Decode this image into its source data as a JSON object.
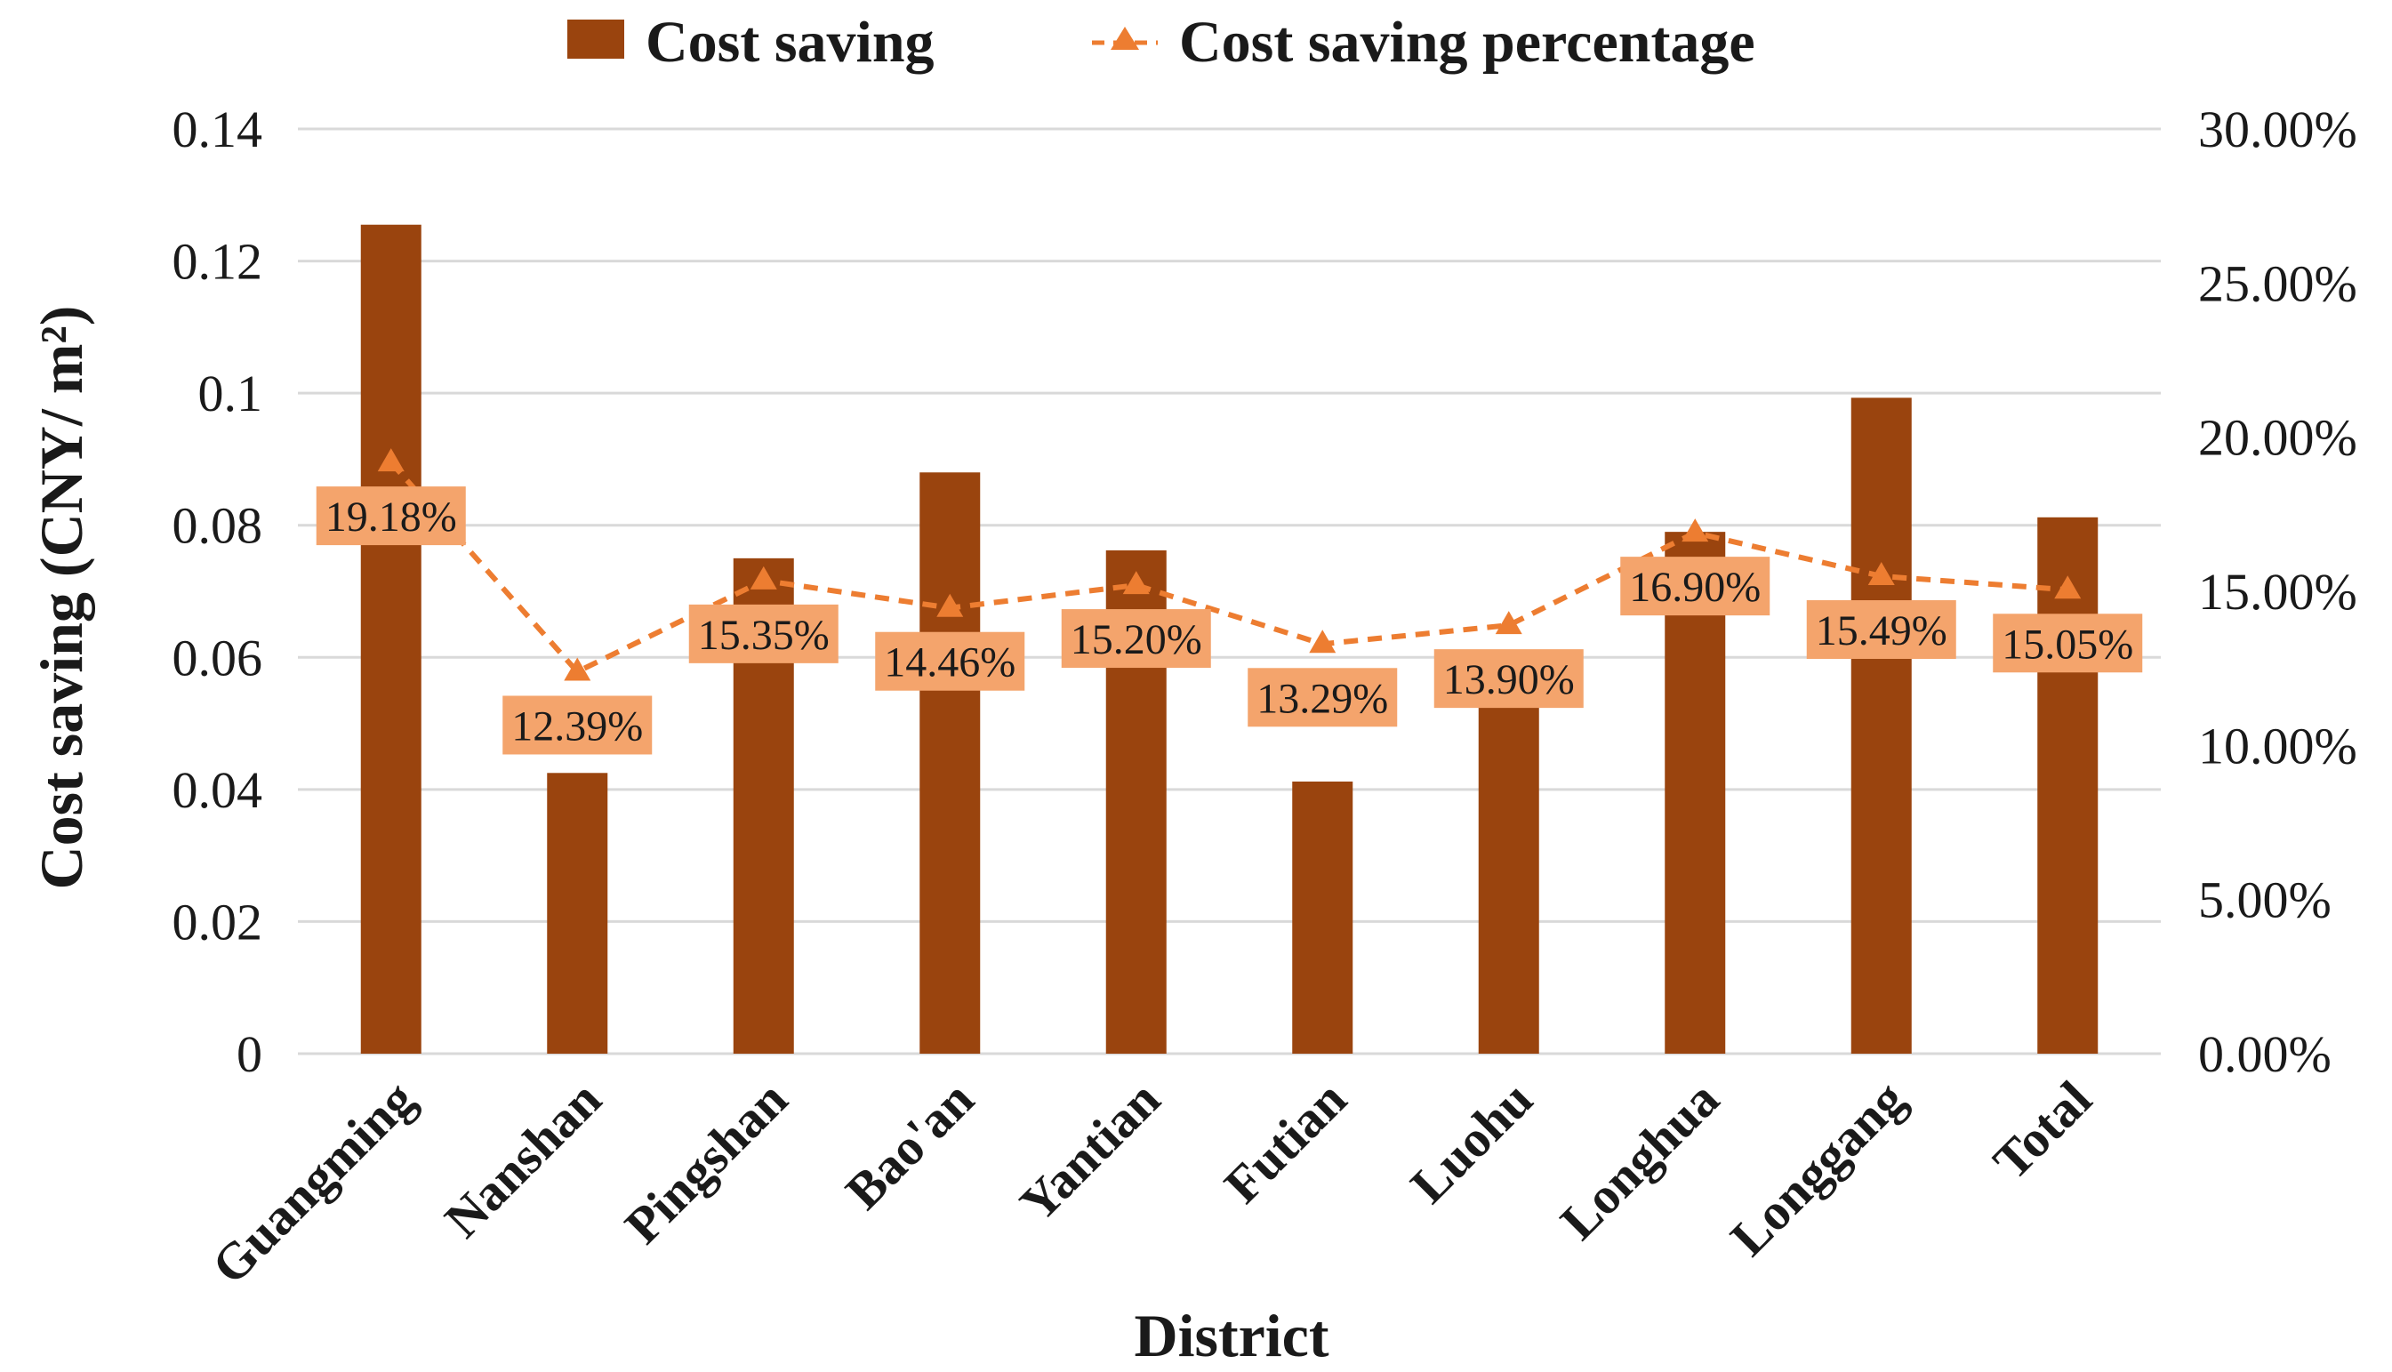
{
  "chart_data": {
    "type": "bar",
    "categories": [
      "Guangming",
      "Nanshan",
      "Pingshan",
      "Bao'an",
      "Yantian",
      "Futian",
      "Luohu",
      "Longhua",
      "Longgang",
      "Total"
    ],
    "series": [
      {
        "name": "Cost saving",
        "type": "bar",
        "axis": "left",
        "color": "#9a440e",
        "values": [
          0.1255,
          0.0425,
          0.075,
          0.088,
          0.0762,
          0.0412,
          0.0528,
          0.079,
          0.0993,
          0.0812
        ]
      },
      {
        "name": "Cost saving percentage",
        "type": "line",
        "axis": "right",
        "color": "#ed7d31",
        "marker": "triangle",
        "line_style": "dashed",
        "values": [
          19.18,
          12.39,
          15.35,
          14.46,
          15.2,
          13.29,
          13.9,
          16.9,
          15.49,
          15.05
        ],
        "labels": [
          "19.18%",
          "12.39%",
          "15.35%",
          "14.46%",
          "15.20%",
          "13.29%",
          "13.90%",
          "16.90%",
          "15.49%",
          "15.05%"
        ],
        "label_bg": "#f4a46c"
      }
    ],
    "y_left": {
      "label": "Cost saving (CNY/ m²)",
      "ylim": [
        0,
        0.14
      ],
      "ticks": [
        0,
        0.02,
        0.04,
        0.06,
        0.08,
        0.1,
        0.12,
        0.14
      ],
      "tick_labels": [
        "0",
        "0.02",
        "0.04",
        "0.06",
        "0.08",
        "0.1",
        "0.12",
        "0.14"
      ]
    },
    "y_right": {
      "ylim": [
        0,
        30
      ],
      "ticks": [
        0,
        5,
        10,
        15,
        20,
        25,
        30
      ],
      "tick_labels": [
        "0.00%",
        "5.00%",
        "10.00%",
        "15.00%",
        "20.00%",
        "25.00%",
        "30.00%"
      ]
    },
    "xlabel": "District",
    "legend": {
      "position": "top",
      "entries": [
        "Cost saving",
        "Cost saving percentage"
      ]
    },
    "grid": true,
    "colors": {
      "grid": "#d9d9d9",
      "text": "#1a1a1a"
    }
  }
}
